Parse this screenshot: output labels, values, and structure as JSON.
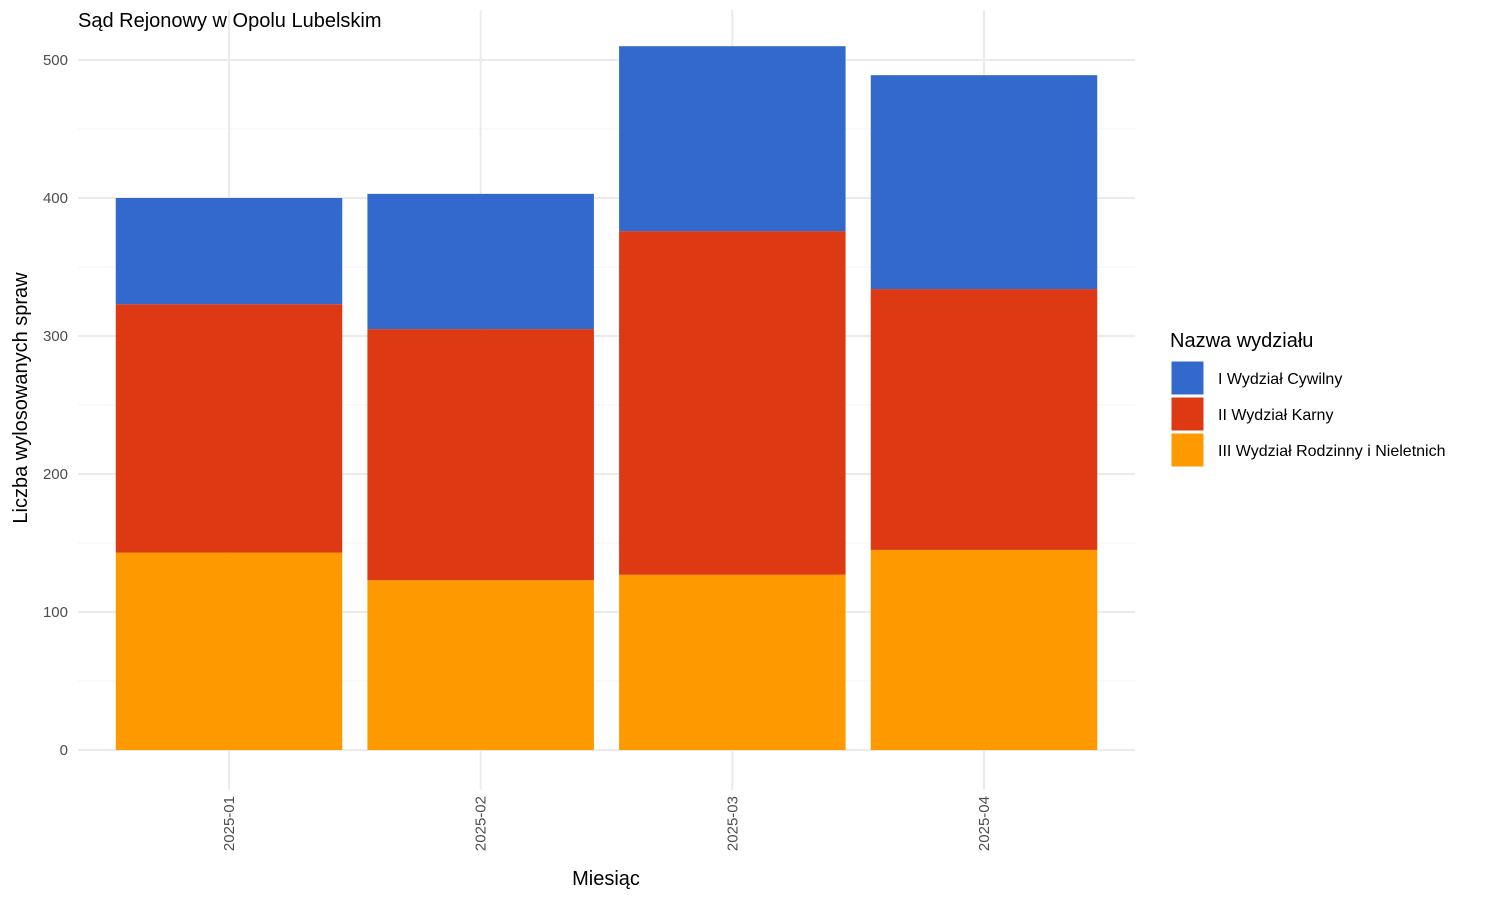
{
  "chart_data": {
    "type": "bar",
    "stacked": true,
    "title": "Sąd Rejonowy w Opolu Lubelskim",
    "xlabel": "Miesiąc",
    "ylabel": "Liczba wylosowanych spraw",
    "ylim": [
      0,
      510
    ],
    "yticks": [
      0,
      100,
      200,
      300,
      400,
      500
    ],
    "categories": [
      "2025-01",
      "2025-02",
      "2025-03",
      "2025-04"
    ],
    "grid": true,
    "legend": {
      "title": "Nazwa wydziału",
      "position": "right"
    },
    "series": [
      {
        "name": "I Wydział Cywilny",
        "color": "#3369CC",
        "values": [
          77,
          98,
          134,
          155
        ]
      },
      {
        "name": "II Wydział Karny",
        "color": "#DD3912",
        "values": [
          180,
          182,
          249,
          189
        ]
      },
      {
        "name": "III Wydział Rodzinny i Nieletnich",
        "color": "#FF9900",
        "values": [
          143,
          123,
          127,
          145
        ]
      }
    ]
  }
}
